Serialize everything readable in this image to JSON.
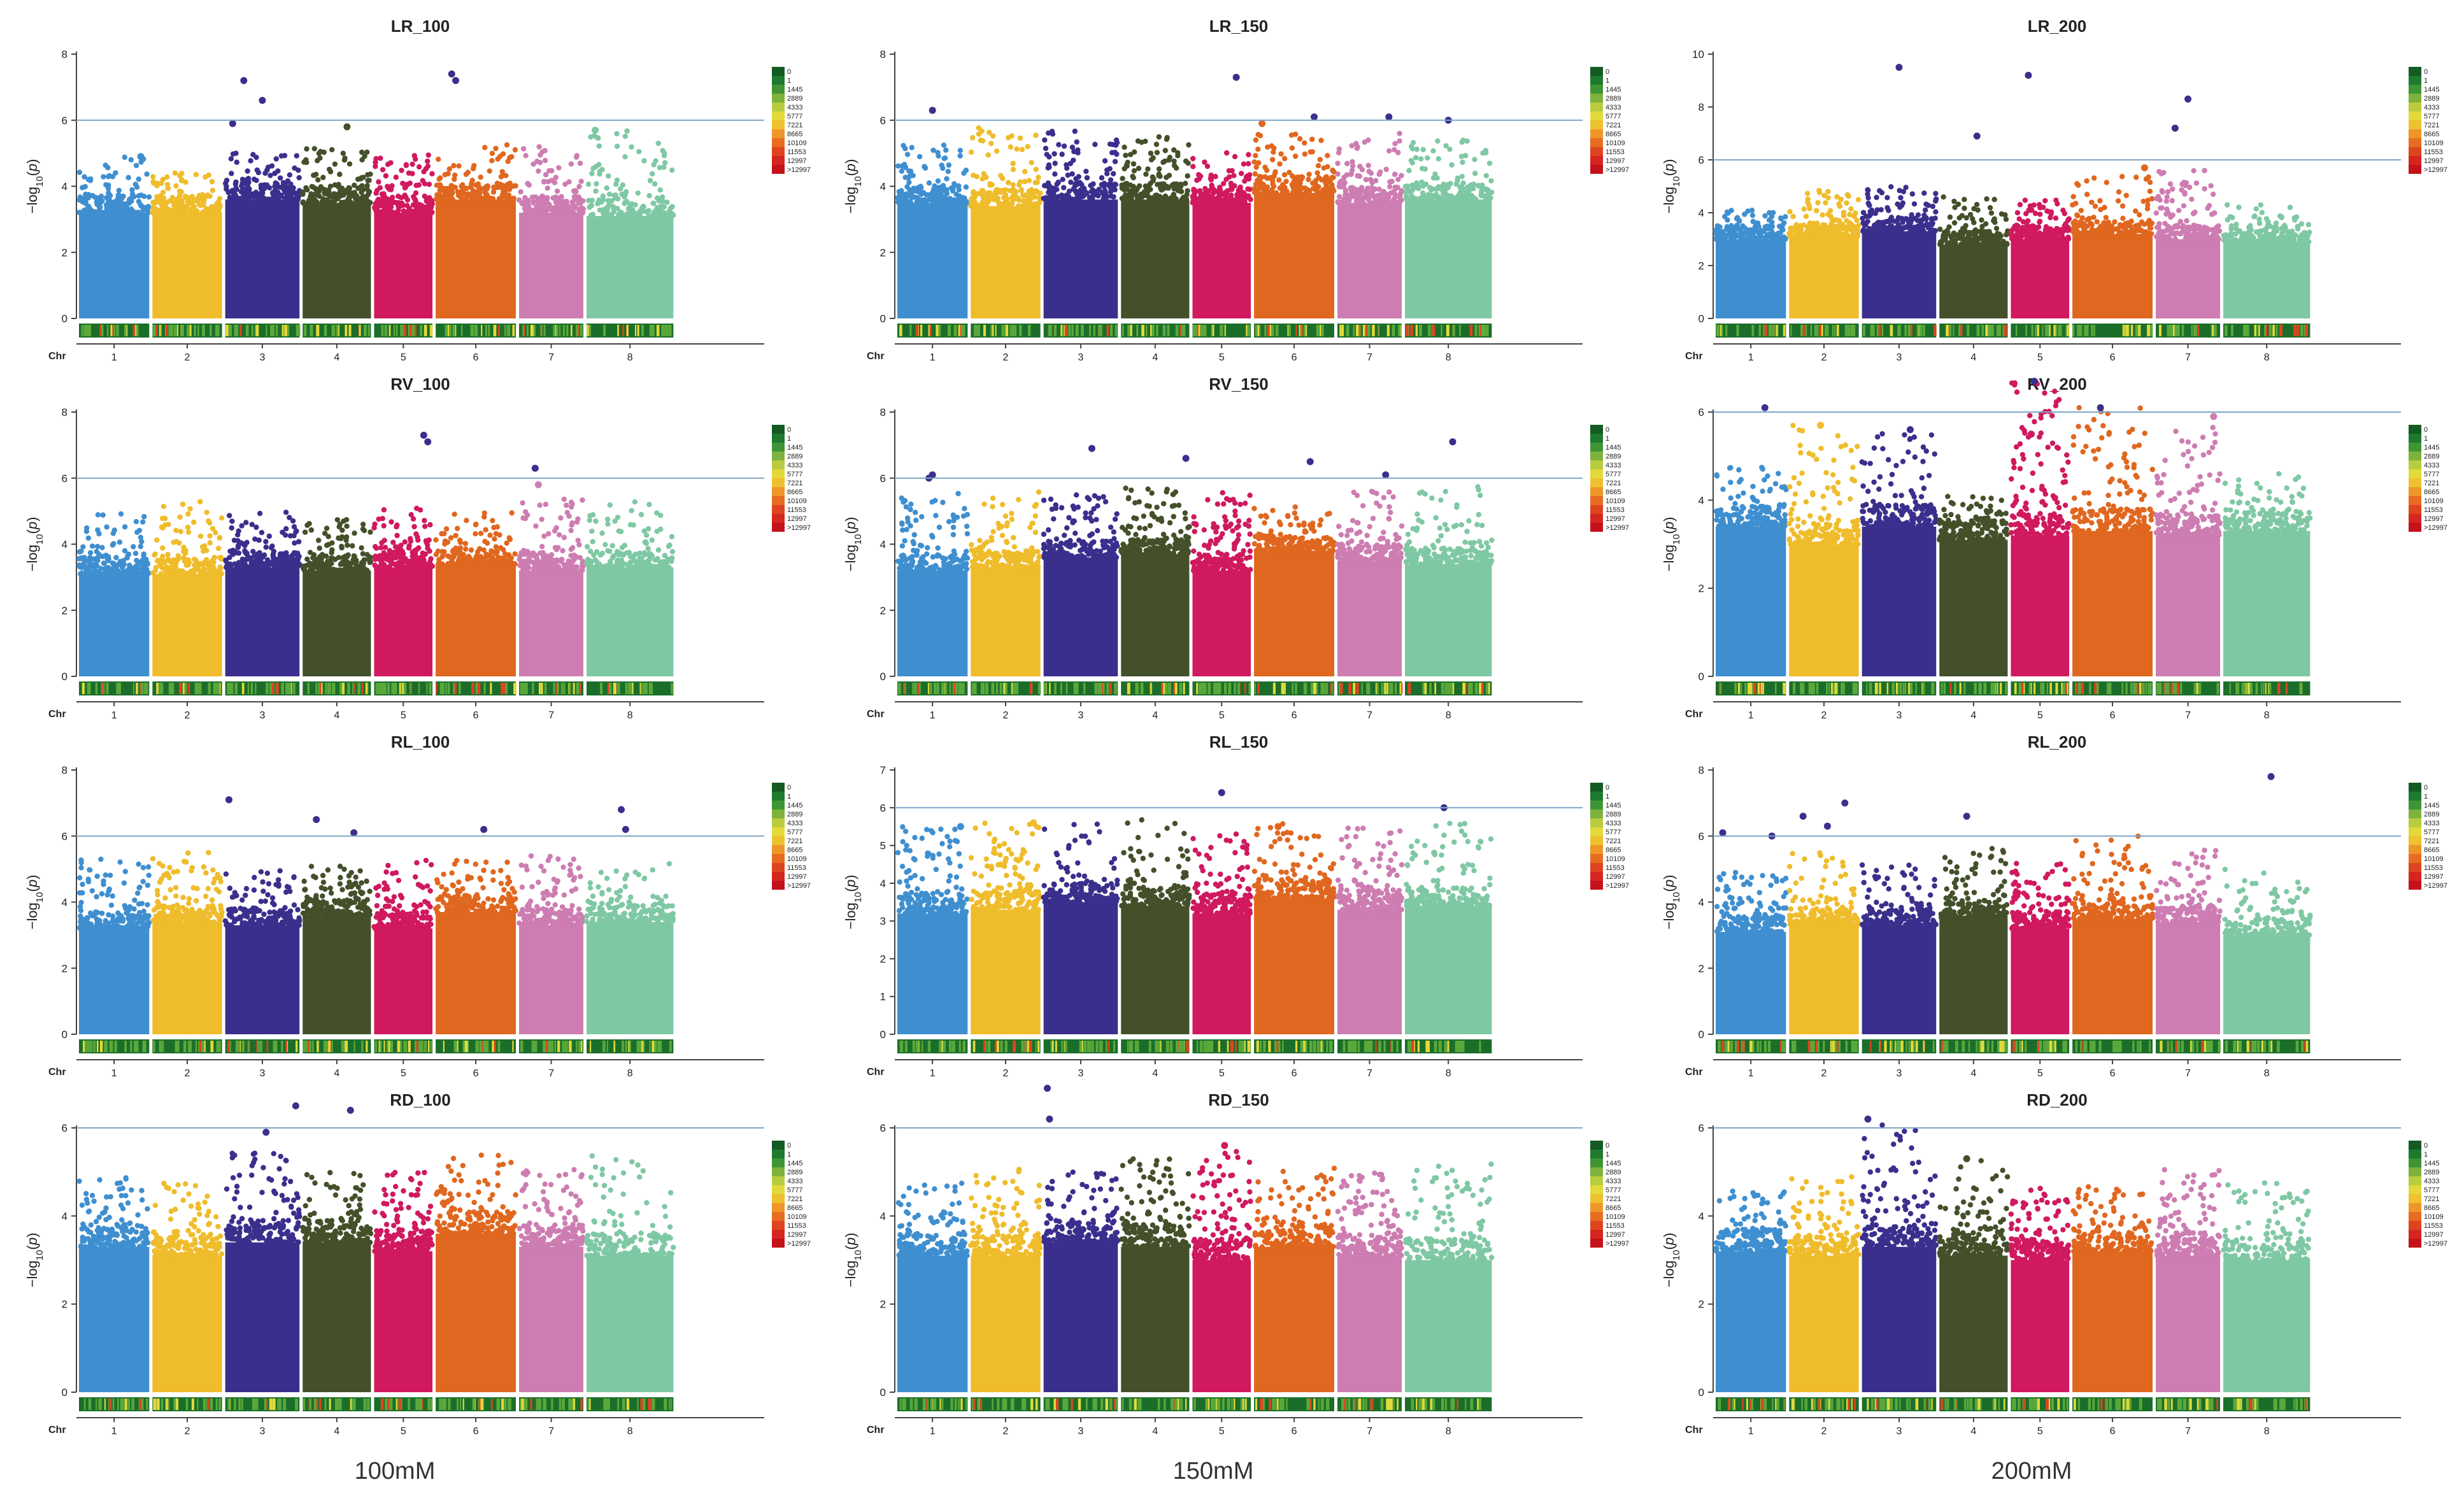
{
  "chart_data": {
    "type": "scatter",
    "subtype": "manhattan",
    "y_axis_label": "-log10(p)",
    "x_axis_label": "Chr",
    "threshold": 6,
    "chromosomes": [
      "1",
      "2",
      "3",
      "4",
      "5",
      "6",
      "7",
      "8"
    ],
    "chromosome_colors": [
      "#3f8fd0",
      "#efbc2c",
      "#3b2f8d",
      "#44502a",
      "#d0195f",
      "#e0671f",
      "#cd7db1",
      "#7fc8a4"
    ],
    "density_legend": {
      "labels": [
        "0",
        "1",
        "1445",
        "2889",
        "4333",
        "5777",
        "7221",
        "8665",
        "10109",
        "11553",
        "12997",
        ">12997"
      ],
      "colors": [
        "#145a23",
        "#1e7a2e",
        "#3f9535",
        "#7eb23c",
        "#b9cc3f",
        "#e3d93a",
        "#eec12f",
        "#ee9628",
        "#e76c22",
        "#de4420",
        "#d4261f",
        "#c4121b"
      ]
    },
    "columns": [
      "100mM",
      "150mM",
      "200mM"
    ],
    "panels": [
      {
        "title": "LR_100",
        "ymax": 8,
        "yticks": [
          0,
          2,
          4,
          6,
          8
        ],
        "seed": 11,
        "base": [
          3.2,
          3.2,
          3.6,
          3.5,
          3.2,
          3.6,
          3.2,
          3.1
        ],
        "top": [
          4.9,
          4.5,
          5.0,
          5.2,
          5.0,
          5.3,
          5.2,
          5.7
        ],
        "peaks": [
          [
            1,
            0.88,
            4.9
          ],
          [
            3,
            0.1,
            5.9
          ],
          [
            3,
            0.25,
            7.2
          ],
          [
            3,
            0.5,
            6.6
          ],
          [
            4,
            0.65,
            5.8
          ],
          [
            6,
            0.2,
            7.4
          ],
          [
            6,
            0.25,
            7.2
          ],
          [
            8,
            0.1,
            5.7
          ]
        ]
      },
      {
        "title": "LR_150",
        "ymax": 8,
        "yticks": [
          0,
          2,
          4,
          6,
          8
        ],
        "seed": 23,
        "base": [
          3.5,
          3.4,
          3.6,
          3.6,
          3.5,
          3.8,
          3.5,
          3.6
        ],
        "top": [
          5.3,
          5.8,
          5.7,
          5.5,
          5.1,
          5.6,
          5.6,
          5.4
        ],
        "peaks": [
          [
            1,
            0.5,
            6.3
          ],
          [
            5,
            0.75,
            7.3
          ],
          [
            6,
            0.1,
            5.9
          ],
          [
            6,
            0.75,
            6.1
          ],
          [
            7,
            0.8,
            6.1
          ],
          [
            8,
            0.5,
            6.0
          ]
        ]
      },
      {
        "title": "LR_200",
        "ymax": 10,
        "yticks": [
          0,
          2,
          4,
          6,
          8,
          10
        ],
        "seed": 37,
        "base": [
          3.0,
          3.1,
          3.3,
          2.8,
          3.0,
          3.2,
          3.0,
          2.9
        ],
        "top": [
          4.1,
          4.9,
          5.0,
          4.6,
          4.5,
          5.4,
          5.7,
          4.3
        ],
        "peaks": [
          [
            3,
            0.5,
            9.5
          ],
          [
            4,
            0.55,
            6.9
          ],
          [
            5,
            0.3,
            9.2
          ],
          [
            6,
            0.9,
            5.7
          ],
          [
            7,
            0.3,
            7.2
          ],
          [
            7,
            0.5,
            8.3
          ]
        ]
      },
      {
        "title": "RV_100",
        "ymax": 8,
        "yticks": [
          0,
          2,
          4,
          6,
          8
        ],
        "seed": 41,
        "base": [
          3.1,
          3.1,
          3.3,
          3.2,
          3.3,
          3.4,
          3.2,
          3.3
        ],
        "top": [
          5.1,
          5.3,
          5.0,
          4.9,
          5.1,
          5.0,
          5.4,
          5.3
        ],
        "peaks": [
          [
            5,
            0.85,
            7.3
          ],
          [
            5,
            0.92,
            7.1
          ],
          [
            7,
            0.25,
            6.3
          ],
          [
            7,
            0.3,
            5.8
          ]
        ]
      },
      {
        "title": "RV_150",
        "ymax": 8,
        "yticks": [
          0,
          2,
          4,
          6,
          8
        ],
        "seed": 53,
        "base": [
          3.2,
          3.3,
          3.6,
          3.7,
          3.2,
          3.8,
          3.5,
          3.4
        ],
        "top": [
          5.6,
          5.6,
          5.5,
          5.7,
          5.6,
          5.3,
          5.6,
          5.8
        ],
        "peaks": [
          [
            1,
            0.45,
            6.0
          ],
          [
            1,
            0.5,
            6.1
          ],
          [
            3,
            0.65,
            6.9
          ],
          [
            4,
            0.95,
            6.6
          ],
          [
            6,
            0.7,
            6.5
          ],
          [
            7,
            0.75,
            6.1
          ],
          [
            8,
            0.55,
            7.1
          ]
        ]
      },
      {
        "title": "RV_200",
        "ymax": 6,
        "yticks": [
          0,
          2,
          4,
          6
        ],
        "seed": 67,
        "base": [
          3.4,
          3.0,
          3.4,
          3.1,
          3.2,
          3.3,
          3.2,
          3.3
        ],
        "top": [
          4.8,
          5.7,
          5.6,
          4.1,
          6.7,
          6.1,
          5.8,
          4.6
        ],
        "peaks": [
          [
            1,
            0.7,
            6.1
          ],
          [
            2,
            0.45,
            5.7
          ],
          [
            3,
            0.65,
            5.6
          ],
          [
            5,
            0.4,
            6.7
          ],
          [
            5,
            0.35,
            5.5
          ],
          [
            6,
            0.35,
            6.1
          ],
          [
            7,
            0.9,
            5.9
          ]
        ]
      },
      {
        "title": "RL_100",
        "ymax": 8,
        "yticks": [
          0,
          2,
          4,
          6,
          8
        ],
        "seed": 79,
        "base": [
          3.2,
          3.4,
          3.3,
          3.6,
          3.2,
          3.7,
          3.3,
          3.4
        ],
        "top": [
          5.3,
          5.5,
          5.0,
          5.1,
          5.3,
          5.3,
          5.4,
          5.2
        ],
        "peaks": [
          [
            3,
            0.05,
            7.1
          ],
          [
            4,
            0.2,
            6.5
          ],
          [
            4,
            0.75,
            6.1
          ],
          [
            6,
            0.6,
            6.2
          ],
          [
            8,
            0.4,
            6.8
          ],
          [
            8,
            0.45,
            6.2
          ]
        ]
      },
      {
        "title": "RL_150",
        "ymax": 7,
        "yticks": [
          0,
          1,
          2,
          3,
          4,
          5,
          6,
          7
        ],
        "seed": 83,
        "base": [
          3.2,
          3.3,
          3.5,
          3.4,
          3.2,
          3.6,
          3.3,
          3.4
        ],
        "top": [
          5.5,
          5.7,
          5.6,
          5.7,
          5.4,
          5.6,
          5.5,
          5.6
        ],
        "peaks": [
          [
            1,
            0.9,
            5.5
          ],
          [
            2,
            0.9,
            5.6
          ],
          [
            5,
            0.5,
            6.4
          ],
          [
            6,
            0.3,
            5.5
          ],
          [
            8,
            0.45,
            6.0
          ]
        ]
      },
      {
        "title": "RL_200",
        "ymax": 8,
        "yticks": [
          0,
          2,
          4,
          6,
          8
        ],
        "seed": 97,
        "base": [
          3.1,
          3.3,
          3.3,
          3.5,
          3.2,
          3.5,
          3.4,
          3.0
        ],
        "top": [
          4.9,
          5.5,
          5.3,
          5.7,
          5.2,
          6.0,
          5.6,
          5.0
        ],
        "peaks": [
          [
            1,
            0.1,
            6.1
          ],
          [
            1,
            0.8,
            6.0
          ],
          [
            2,
            0.2,
            6.6
          ],
          [
            2,
            0.55,
            6.3
          ],
          [
            2,
            0.8,
            7.0
          ],
          [
            4,
            0.4,
            6.6
          ],
          [
            8,
            0.55,
            7.8
          ]
        ]
      },
      {
        "title": "RD_100",
        "ymax": 6,
        "yticks": [
          0,
          2,
          4,
          6
        ],
        "seed": 101,
        "base": [
          3.3,
          3.1,
          3.4,
          3.4,
          3.2,
          3.6,
          3.3,
          3.1
        ],
        "top": [
          4.9,
          4.8,
          5.6,
          5.0,
          5.0,
          5.4,
          5.1,
          5.4
        ],
        "peaks": [
          [
            3,
            0.55,
            5.9
          ],
          [
            3,
            0.95,
            6.5
          ],
          [
            4,
            0.7,
            6.4
          ]
        ]
      },
      {
        "title": "RD_150",
        "ymax": 6,
        "yticks": [
          0,
          2,
          4,
          6
        ],
        "seed": 113,
        "base": [
          3.1,
          3.1,
          3.4,
          3.3,
          3.0,
          3.3,
          3.1,
          3.0
        ],
        "top": [
          4.8,
          5.1,
          5.0,
          5.3,
          5.5,
          5.1,
          5.0,
          5.2
        ],
        "peaks": [
          [
            3,
            0.05,
            6.9
          ],
          [
            3,
            0.08,
            6.2
          ],
          [
            5,
            0.55,
            5.6
          ]
        ]
      },
      {
        "title": "RD_200",
        "ymax": 6,
        "yticks": [
          0,
          2,
          4,
          6
        ],
        "seed": 127,
        "base": [
          3.2,
          3.1,
          3.3,
          3.1,
          3.0,
          3.2,
          3.1,
          3.0
        ],
        "top": [
          4.6,
          4.9,
          6.2,
          5.3,
          4.7,
          4.7,
          5.1,
          4.9
        ],
        "peaks": [
          [
            3,
            0.08,
            6.2
          ],
          [
            4,
            0.4,
            5.3
          ]
        ]
      }
    ]
  }
}
